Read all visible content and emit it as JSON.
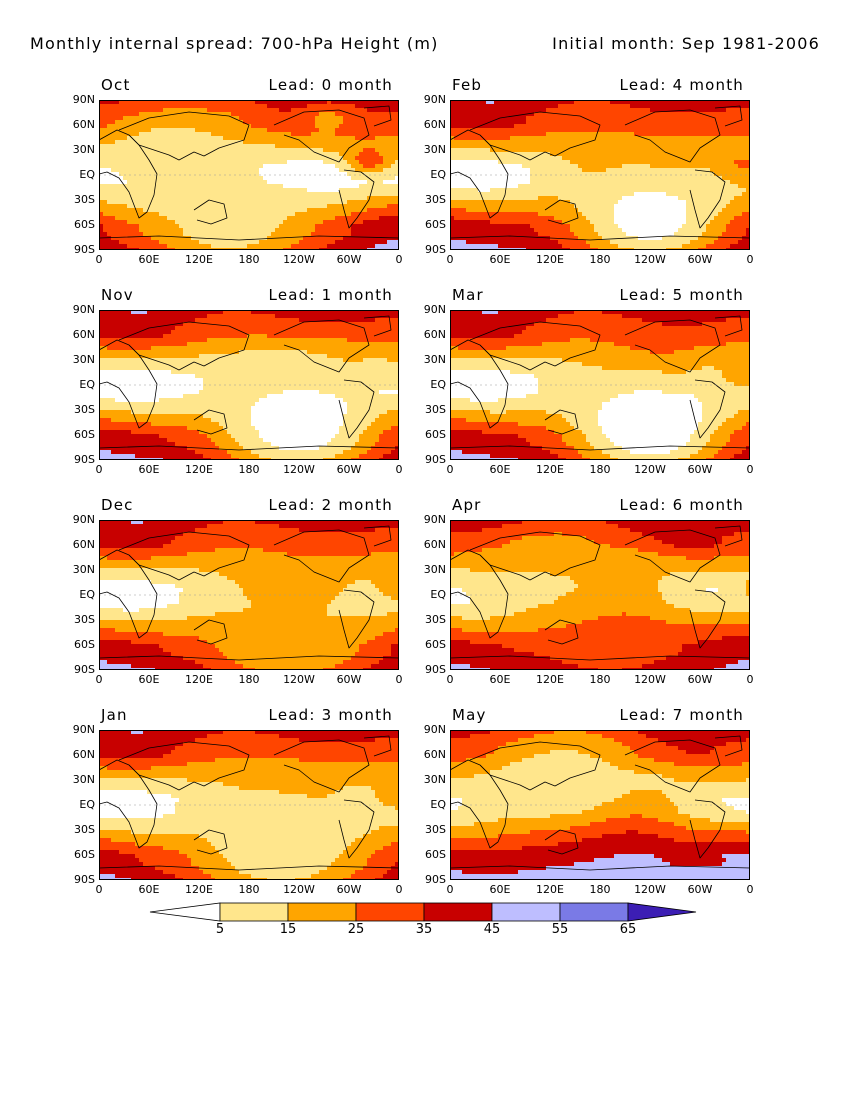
{
  "title_left": "Monthly internal spread: 700-hPa Height (m)",
  "title_right": "Initial month: Sep 1981-2006",
  "lat_labels": [
    "90N",
    "60N",
    "30N",
    "EQ",
    "30S",
    "60S",
    "90S"
  ],
  "lon_labels": [
    "0",
    "60E",
    "120E",
    "180",
    "120W",
    "60W",
    "0"
  ],
  "panels": [
    {
      "month": "Oct",
      "lead": "Lead: 0 month",
      "blobs": [
        [
          230,
          20,
          30,
          0.35
        ],
        [
          270,
          60,
          25,
          0.45
        ],
        [
          330,
          45,
          25,
          0.35
        ],
        [
          130,
          120,
          90,
          0.15
        ],
        [
          70,
          50,
          75,
          0.2
        ]
      ]
    },
    {
      "month": "Feb",
      "lead": "Lead: 4 month",
      "blobs": [
        [
          190,
          65,
          45,
          0.75
        ],
        [
          290,
          65,
          35,
          0.45
        ],
        [
          330,
          55,
          25,
          0.35
        ],
        [
          180,
          75,
          90,
          0.3
        ],
        [
          200,
          120,
          70,
          0.05
        ]
      ]
    },
    {
      "month": "Nov",
      "lead": "Lead: 1 month",
      "blobs": [
        [
          230,
          60,
          40,
          0.35
        ],
        [
          330,
          55,
          30,
          0.35
        ],
        [
          180,
          85,
          90,
          0.2
        ],
        [
          200,
          120,
          70,
          0.05
        ]
      ]
    },
    {
      "month": "Mar",
      "lead": "Lead: 5 month",
      "blobs": [
        [
          195,
          55,
          45,
          0.75
        ],
        [
          290,
          65,
          30,
          0.35
        ],
        [
          180,
          80,
          90,
          0.25
        ],
        [
          200,
          120,
          70,
          0.0
        ]
      ]
    },
    {
      "month": "Dec",
      "lead": "Lead: 2 month",
      "blobs": [
        [
          195,
          60,
          45,
          0.7
        ],
        [
          300,
          65,
          30,
          0.35
        ],
        [
          180,
          80,
          90,
          0.25
        ],
        [
          190,
          120,
          80,
          0.25
        ]
      ]
    },
    {
      "month": "Apr",
      "lead": "Lead: 6 month",
      "blobs": [
        [
          180,
          60,
          40,
          0.2
        ],
        [
          310,
          70,
          25,
          0.3
        ],
        [
          160,
          120,
          90,
          0.45
        ],
        [
          90,
          55,
          75,
          0.25
        ]
      ]
    },
    {
      "month": "Jan",
      "lead": "Lead: 3 month",
      "blobs": [
        [
          190,
          70,
          45,
          0.55
        ],
        [
          300,
          65,
          30,
          0.35
        ],
        [
          180,
          80,
          90,
          0.3
        ],
        [
          180,
          120,
          90,
          0.15
        ]
      ]
    },
    {
      "month": "May",
      "lead": "Lead: 7 month",
      "blobs": [
        [
          200,
          60,
          30,
          0.1
        ],
        [
          140,
          110,
          90,
          0.75
        ],
        [
          110,
          55,
          90,
          0.15
        ],
        [
          330,
          50,
          30,
          0.25
        ]
      ]
    }
  ],
  "colorbar": {
    "levels": [
      "5",
      "15",
      "25",
      "35",
      "45",
      "55",
      "65"
    ],
    "colors": [
      "#ffffff",
      "#ffe68c",
      "#ffa500",
      "#ff4500",
      "#c80000",
      "#bebeff",
      "#7a7ae6",
      "#3c1eb4"
    ]
  }
}
